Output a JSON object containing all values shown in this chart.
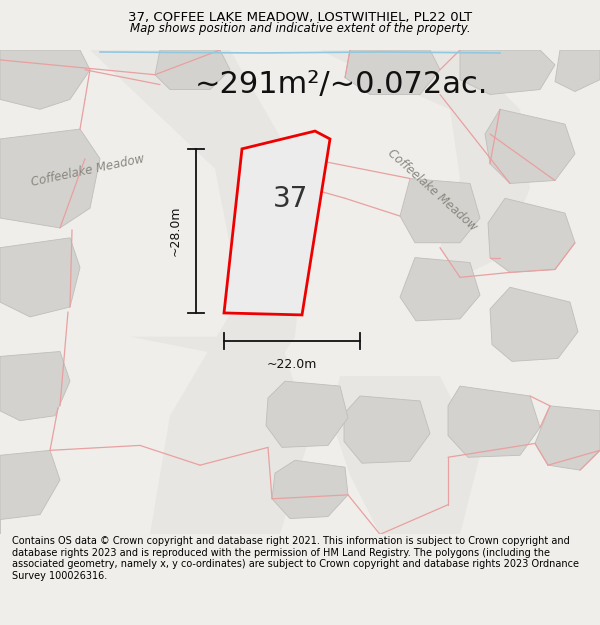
{
  "title_line1": "37, COFFEE LAKE MEADOW, LOSTWITHIEL, PL22 0LT",
  "title_line2": "Map shows position and indicative extent of the property.",
  "area_text": "~291m²/~0.072ac.",
  "label_37": "37",
  "dim_vertical": "~28.0m",
  "dim_horizontal": "~22.0m",
  "street_label_1": "Coffeelake Meadow",
  "street_label_2": "Coffeelake Meadow",
  "footer_text": "Contains OS data © Crown copyright and database right 2021. This information is subject to Crown copyright and database rights 2023 and is reproduced with the permission of HM Land Registry. The polygons (including the associated geometry, namely x, y co-ordinates) are subject to Crown copyright and database rights 2023 Ordnance Survey 100026316.",
  "bg_color": "#f0eeea",
  "map_bg": "#f0eeea",
  "plot_fill": "#e8e8e4",
  "plot_edge": "#ee0000",
  "dim_color": "#111111",
  "bldg_fill": "#d4d2ce",
  "bldg_edge": "#c0bebb",
  "road_fill": "#e8e6e2",
  "pink": "#e8a0a0",
  "blue_line": "#90c8e0",
  "title_fontsize": 9.5,
  "subtitle_fontsize": 8.5,
  "area_fontsize": 22,
  "label_fontsize": 20,
  "street_fontsize": 8.5,
  "footer_fontsize": 7.0
}
